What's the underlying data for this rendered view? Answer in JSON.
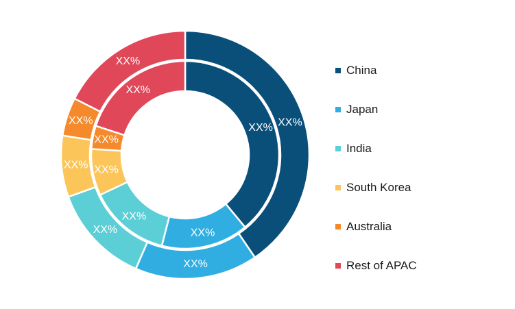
{
  "chart_data": {
    "type": "pie",
    "variant": "double-donut",
    "categories": [
      "China",
      "Japan",
      "India",
      "South Korea",
      "Australia",
      "Rest of APAC"
    ],
    "colors": [
      "#0a4f7a",
      "#30aee2",
      "#5cced6",
      "#fcc55a",
      "#f48a2c",
      "#e0485a"
    ],
    "series": [
      {
        "values": [
          40.5,
          16.0,
          13.0,
          8.0,
          5.0,
          17.5
        ],
        "labels": [
          "XX%",
          "XX%",
          "XX%",
          "XX%",
          "XX%",
          "XX%"
        ]
      },
      {
        "values": [
          39.0,
          15.0,
          14.0,
          8.0,
          4.0,
          20.0
        ],
        "labels": [
          "XX%",
          "XX%",
          "XX%",
          "XX%",
          "XX%",
          "XX%"
        ]
      }
    ],
    "legend": {
      "position": "right"
    }
  }
}
